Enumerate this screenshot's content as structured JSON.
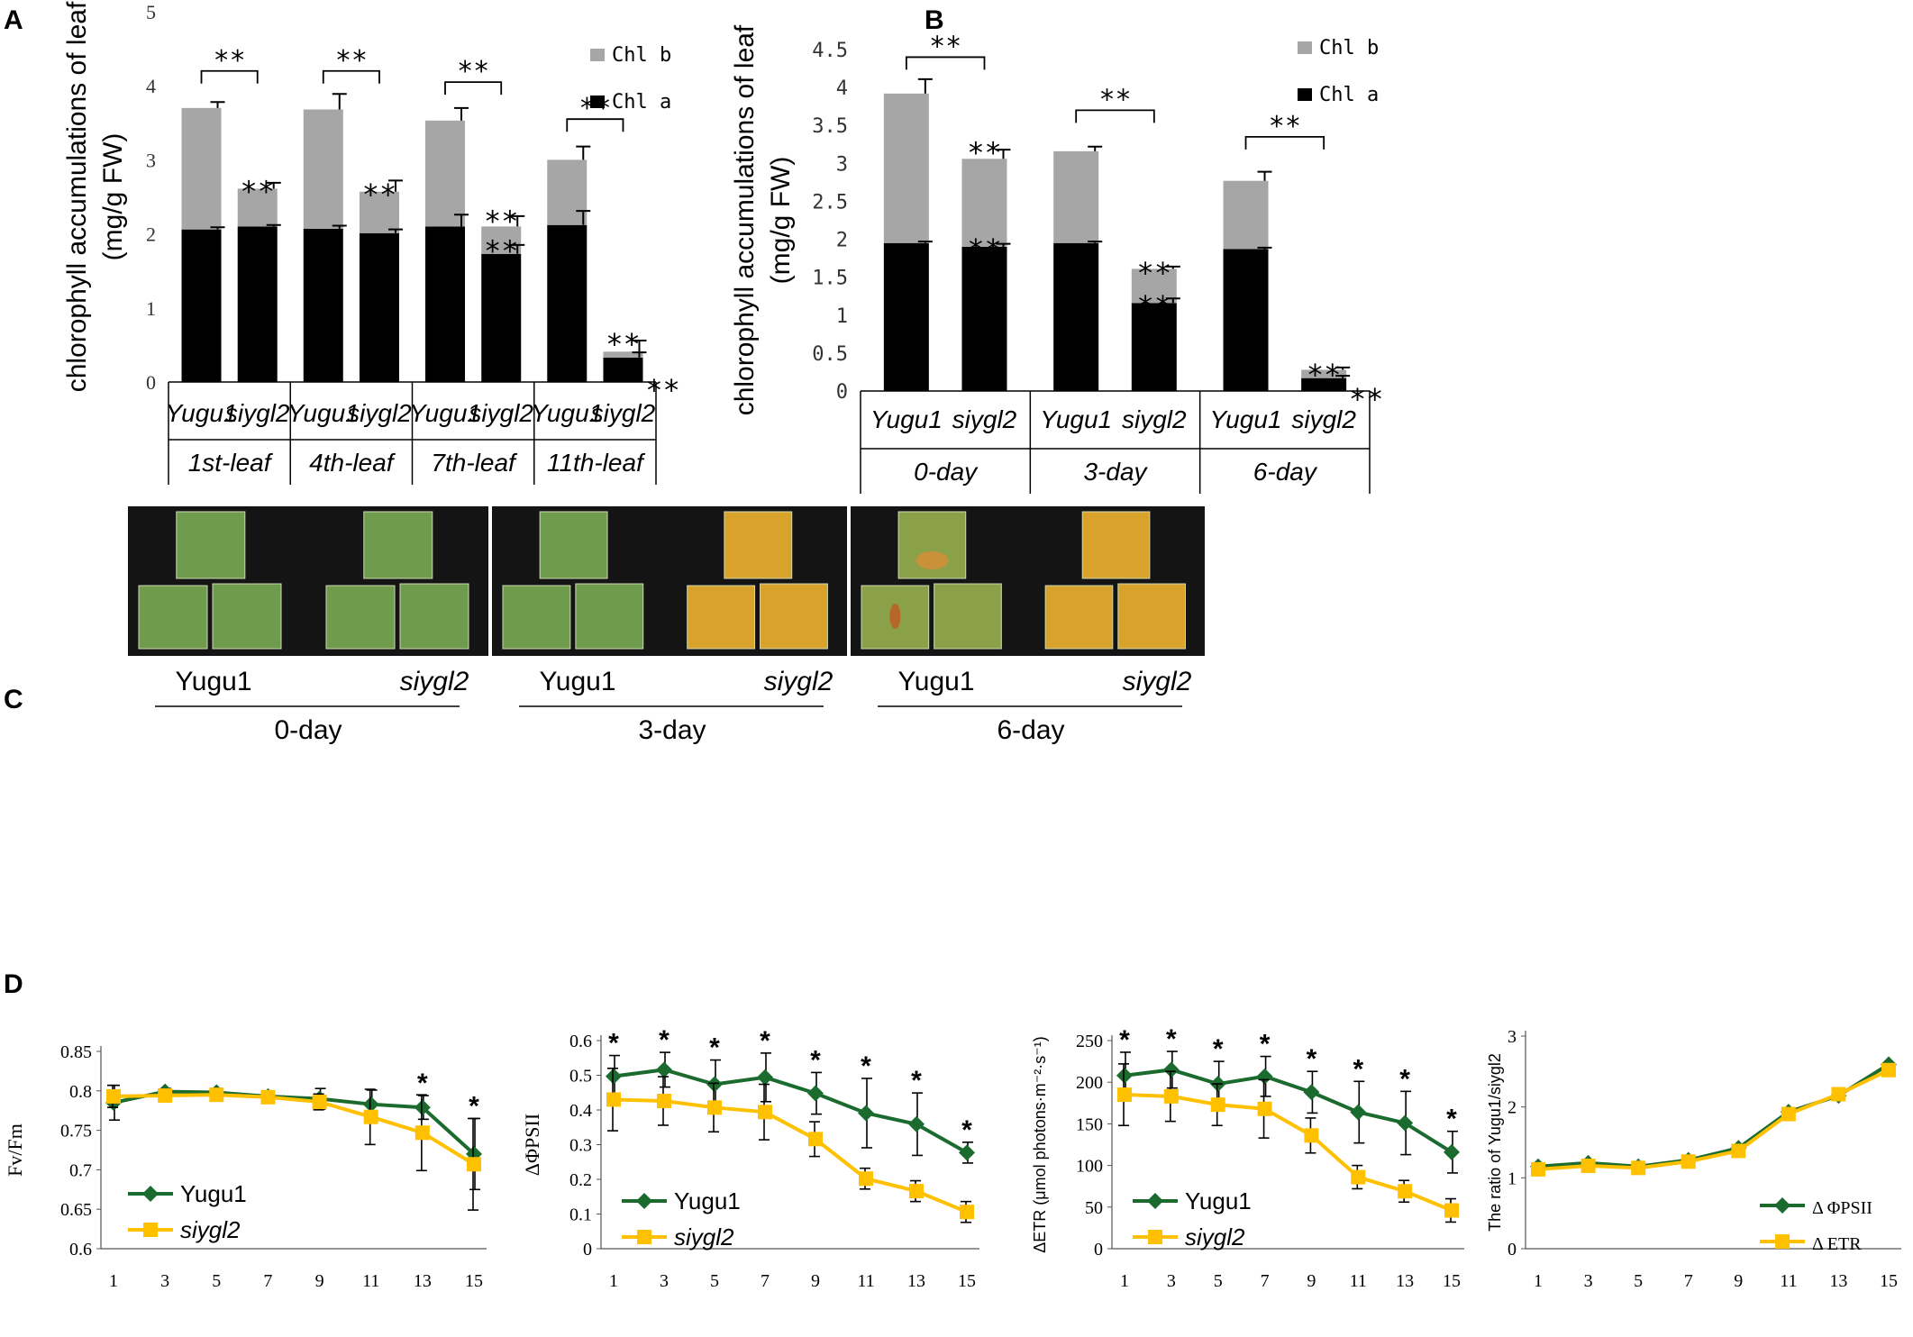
{
  "panel_labels": {
    "a": "A",
    "b": "B",
    "c": "C",
    "d": "D"
  },
  "colors": {
    "chl_a": "#000000",
    "chl_b": "#a6a6a6",
    "yugu1_line": "#1b6b2e",
    "siygl2_line": "#ffc000",
    "photo_bg": "#141414",
    "leaf_green": "#6f9b4c",
    "leaf_yellow": "#d9a22a"
  },
  "chart_data": [
    {
      "id": "A",
      "type": "bar",
      "stacked": true,
      "title": "",
      "ylabel": "chlorophyll accumulations of leaf",
      "ylabel_unit": "(mg/g FW)",
      "ylim": [
        0,
        5
      ],
      "yticks": [
        "0",
        "1",
        "2",
        "3",
        "4",
        "5"
      ],
      "legend": [
        "Chl b",
        "Chl a"
      ],
      "legend_position": "top-right",
      "groups": [
        "1st-leaf",
        "4th-leaf",
        "7th-leaf",
        "11th-leaf"
      ],
      "categories": [
        "Yugu1",
        "siygl2",
        "Yugu1",
        "siygl2",
        "Yugu1",
        "siygl2",
        "Yugu1",
        "siygl2"
      ],
      "series": [
        {
          "name": "Chl a",
          "values": [
            2.06,
            2.1,
            2.07,
            2.01,
            2.1,
            1.73,
            2.12,
            0.33
          ],
          "errors": [
            0.03,
            0.02,
            0.04,
            0.05,
            0.16,
            0.12,
            0.19,
            0.07
          ]
        },
        {
          "name": "Chl b",
          "values": [
            1.64,
            0.51,
            1.61,
            0.56,
            1.43,
            0.37,
            0.88,
            0.08
          ],
          "errors": [
            0.08,
            0.08,
            0.21,
            0.15,
            0.17,
            0.14,
            0.18,
            0.15
          ]
        }
      ],
      "significance": [
        {
          "label": "**",
          "bar_index": 1,
          "level": 2.68
        },
        {
          "label": "**",
          "bar_index": 3,
          "level": 2.64
        },
        {
          "label": "**",
          "bar_index": 5,
          "level": 2.28
        },
        {
          "label": "**",
          "bar_index": 5,
          "level": 1.88
        },
        {
          "label": "**",
          "bar_index": 7,
          "level": 0.62
        },
        {
          "label": "**",
          "bar_index": 7,
          "level": 0.0,
          "offset_right": true
        }
      ],
      "brackets": [
        {
          "label": "**",
          "from": 0,
          "to": 1,
          "level": 4.2
        },
        {
          "label": "**",
          "from": 2,
          "to": 3,
          "level": 4.2
        },
        {
          "label": "**",
          "from": 4,
          "to": 5,
          "level": 4.05
        },
        {
          "label": "**",
          "from": 6,
          "to": 7,
          "level": 3.55
        }
      ]
    },
    {
      "id": "B",
      "type": "bar",
      "stacked": true,
      "title": "",
      "ylabel": "chlorophyll accumulations of leaf",
      "ylabel_unit": "(mg/g FW)",
      "ylim": [
        0,
        4.5
      ],
      "yticks": [
        "0",
        "0.5",
        "1",
        "1.5",
        "2",
        "2.5",
        "3",
        "3.5",
        "4",
        "4.5"
      ],
      "legend": [
        "Chl b",
        "Chl a"
      ],
      "legend_position": "top-right",
      "groups": [
        "0-day",
        "3-day",
        "6-day"
      ],
      "categories": [
        "Yugu1",
        "siygl2",
        "Yugu1",
        "siygl2",
        "Yugu1",
        "siygl2"
      ],
      "series": [
        {
          "name": "Chl a",
          "values": [
            1.95,
            1.9,
            1.95,
            1.16,
            1.87,
            0.17
          ],
          "errors": [
            0.02,
            0.04,
            0.02,
            0.06,
            0.02,
            0.03
          ]
        },
        {
          "name": "Chl b",
          "values": [
            1.97,
            1.16,
            1.21,
            0.45,
            0.9,
            0.11
          ],
          "errors": [
            0.19,
            0.12,
            0.06,
            0.03,
            0.12,
            0.03
          ]
        }
      ],
      "significance": [
        {
          "label": "**",
          "bar_index": 1,
          "level": 3.25
        },
        {
          "label": "**",
          "bar_index": 1,
          "level": 1.97
        },
        {
          "label": "**",
          "bar_index": 3,
          "level": 1.66
        },
        {
          "label": "**",
          "bar_index": 3,
          "level": 1.22
        },
        {
          "label": "**",
          "bar_index": 5,
          "level": 0.32
        },
        {
          "label": "**",
          "bar_index": 5,
          "level": 0.0,
          "offset_right": true
        }
      ],
      "brackets": [
        {
          "label": "**",
          "from": 0,
          "to": 1,
          "level": 4.4
        },
        {
          "label": "**",
          "from": 2,
          "to": 3,
          "level": 3.7
        },
        {
          "label": "**",
          "from": 4,
          "to": 5,
          "level": 3.35
        }
      ]
    },
    {
      "id": "D1",
      "type": "line",
      "ylabel": "Fv/Fm",
      "ylim": [
        0.6,
        0.85
      ],
      "yticks": [
        "0.6",
        "0.65",
        "0.7",
        "0.75",
        "0.8",
        "0.85"
      ],
      "x": [
        1,
        3,
        5,
        7,
        9,
        11,
        13,
        15
      ],
      "xticks": [
        "1",
        "3",
        "5",
        "7",
        "9",
        "11",
        "13",
        "15"
      ],
      "legend_position": "bottom-left",
      "series": [
        {
          "name": "Yugu1",
          "values": [
            0.785,
            0.799,
            0.798,
            0.793,
            0.79,
            0.783,
            0.779,
            0.72
          ],
          "errors": [
            0.022,
            0.004,
            0.005,
            0.003,
            0.013,
            0.018,
            0.015,
            0.045
          ]
        },
        {
          "name": "siygl2",
          "values": [
            0.793,
            0.794,
            0.795,
            0.792,
            0.786,
            0.767,
            0.747,
            0.707
          ],
          "errors": [
            0.014,
            0.008,
            0.008,
            0.005,
            0.01,
            0.035,
            0.048,
            0.058
          ]
        }
      ],
      "asterisks": [
        {
          "x": 13,
          "label": "*"
        },
        {
          "x": 15,
          "label": "*"
        }
      ]
    },
    {
      "id": "D2",
      "type": "line",
      "ylabel": "ΔΦPSII",
      "ylim": [
        0,
        0.6
      ],
      "yticks": [
        "0",
        "0.1",
        "0.2",
        "0.3",
        "0.4",
        "0.5",
        "0.6"
      ],
      "x": [
        1,
        3,
        5,
        7,
        9,
        11,
        13,
        15
      ],
      "xticks": [
        "1",
        "3",
        "5",
        "7",
        "9",
        "11",
        "13",
        "15"
      ],
      "legend_position": "bottom-left",
      "series": [
        {
          "name": "Yugu1",
          "values": [
            0.497,
            0.516,
            0.474,
            0.494,
            0.448,
            0.391,
            0.359,
            0.277
          ],
          "errors": [
            0.06,
            0.05,
            0.07,
            0.07,
            0.06,
            0.1,
            0.09,
            0.03
          ]
        },
        {
          "name": "siygl2",
          "values": [
            0.43,
            0.426,
            0.407,
            0.394,
            0.316,
            0.202,
            0.166,
            0.106
          ],
          "errors": [
            0.09,
            0.07,
            0.07,
            0.08,
            0.05,
            0.03,
            0.03,
            0.03
          ]
        }
      ],
      "asterisks": [
        {
          "x": 1,
          "label": "*"
        },
        {
          "x": 3,
          "label": "*"
        },
        {
          "x": 5,
          "label": "*"
        },
        {
          "x": 7,
          "label": "*"
        },
        {
          "x": 9,
          "label": "*"
        },
        {
          "x": 11,
          "label": "*"
        },
        {
          "x": 13,
          "label": "*"
        },
        {
          "x": 15,
          "label": "*"
        }
      ]
    },
    {
      "id": "D3",
      "type": "line",
      "ylabel": "ΔETR (μmol photons·m⁻²·s⁻¹)",
      "ylim": [
        0,
        250
      ],
      "yticks": [
        "0",
        "50",
        "100",
        "150",
        "200",
        "250"
      ],
      "x": [
        1,
        3,
        5,
        7,
        9,
        11,
        13,
        15
      ],
      "xticks": [
        "1",
        "3",
        "5",
        "7",
        "9",
        "11",
        "13",
        "15"
      ],
      "legend_position": "bottom-left",
      "series": [
        {
          "name": "Yugu1",
          "values": [
            208,
            215,
            198,
            207,
            188,
            164,
            151,
            116
          ],
          "errors": [
            28,
            22,
            27,
            24,
            25,
            37,
            38,
            25
          ]
        },
        {
          "name": "siygl2",
          "values": [
            185,
            183,
            173,
            168,
            136,
            86,
            69,
            46
          ],
          "errors": [
            37,
            30,
            25,
            35,
            21,
            14,
            13,
            14
          ]
        }
      ],
      "asterisks": [
        {
          "x": 1,
          "label": "*"
        },
        {
          "x": 3,
          "label": "*"
        },
        {
          "x": 5,
          "label": "*"
        },
        {
          "x": 7,
          "label": "*"
        },
        {
          "x": 9,
          "label": "*"
        },
        {
          "x": 11,
          "label": "*"
        },
        {
          "x": 13,
          "label": "*"
        },
        {
          "x": 15,
          "label": "*"
        }
      ]
    },
    {
      "id": "D4",
      "type": "line",
      "ylabel": "The ratio of Yugu1/siygl2",
      "ylim": [
        0,
        3
      ],
      "yticks": [
        "0",
        "1",
        "2",
        "3"
      ],
      "x": [
        1,
        3,
        5,
        7,
        9,
        11,
        13,
        15
      ],
      "xticks": [
        "1",
        "3",
        "5",
        "7",
        "9",
        "11",
        "13",
        "15"
      ],
      "legend_position": "bottom-right",
      "series": [
        {
          "name": "Δ ΦPSII",
          "values": [
            1.16,
            1.21,
            1.16,
            1.25,
            1.42,
            1.93,
            2.16,
            2.6
          ]
        },
        {
          "name": "Δ ETR",
          "values": [
            1.12,
            1.17,
            1.14,
            1.23,
            1.38,
            1.9,
            2.18,
            2.52
          ]
        }
      ],
      "asterisks": []
    }
  ],
  "panelC": {
    "images": [
      {
        "caption": "0-day",
        "genotypes": [
          "Yugu1",
          "siygl2"
        ]
      },
      {
        "caption": "3-day",
        "genotypes": [
          "Yugu1",
          "siygl2"
        ]
      },
      {
        "caption": "6-day",
        "genotypes": [
          "Yugu1",
          "siygl2"
        ]
      }
    ]
  }
}
